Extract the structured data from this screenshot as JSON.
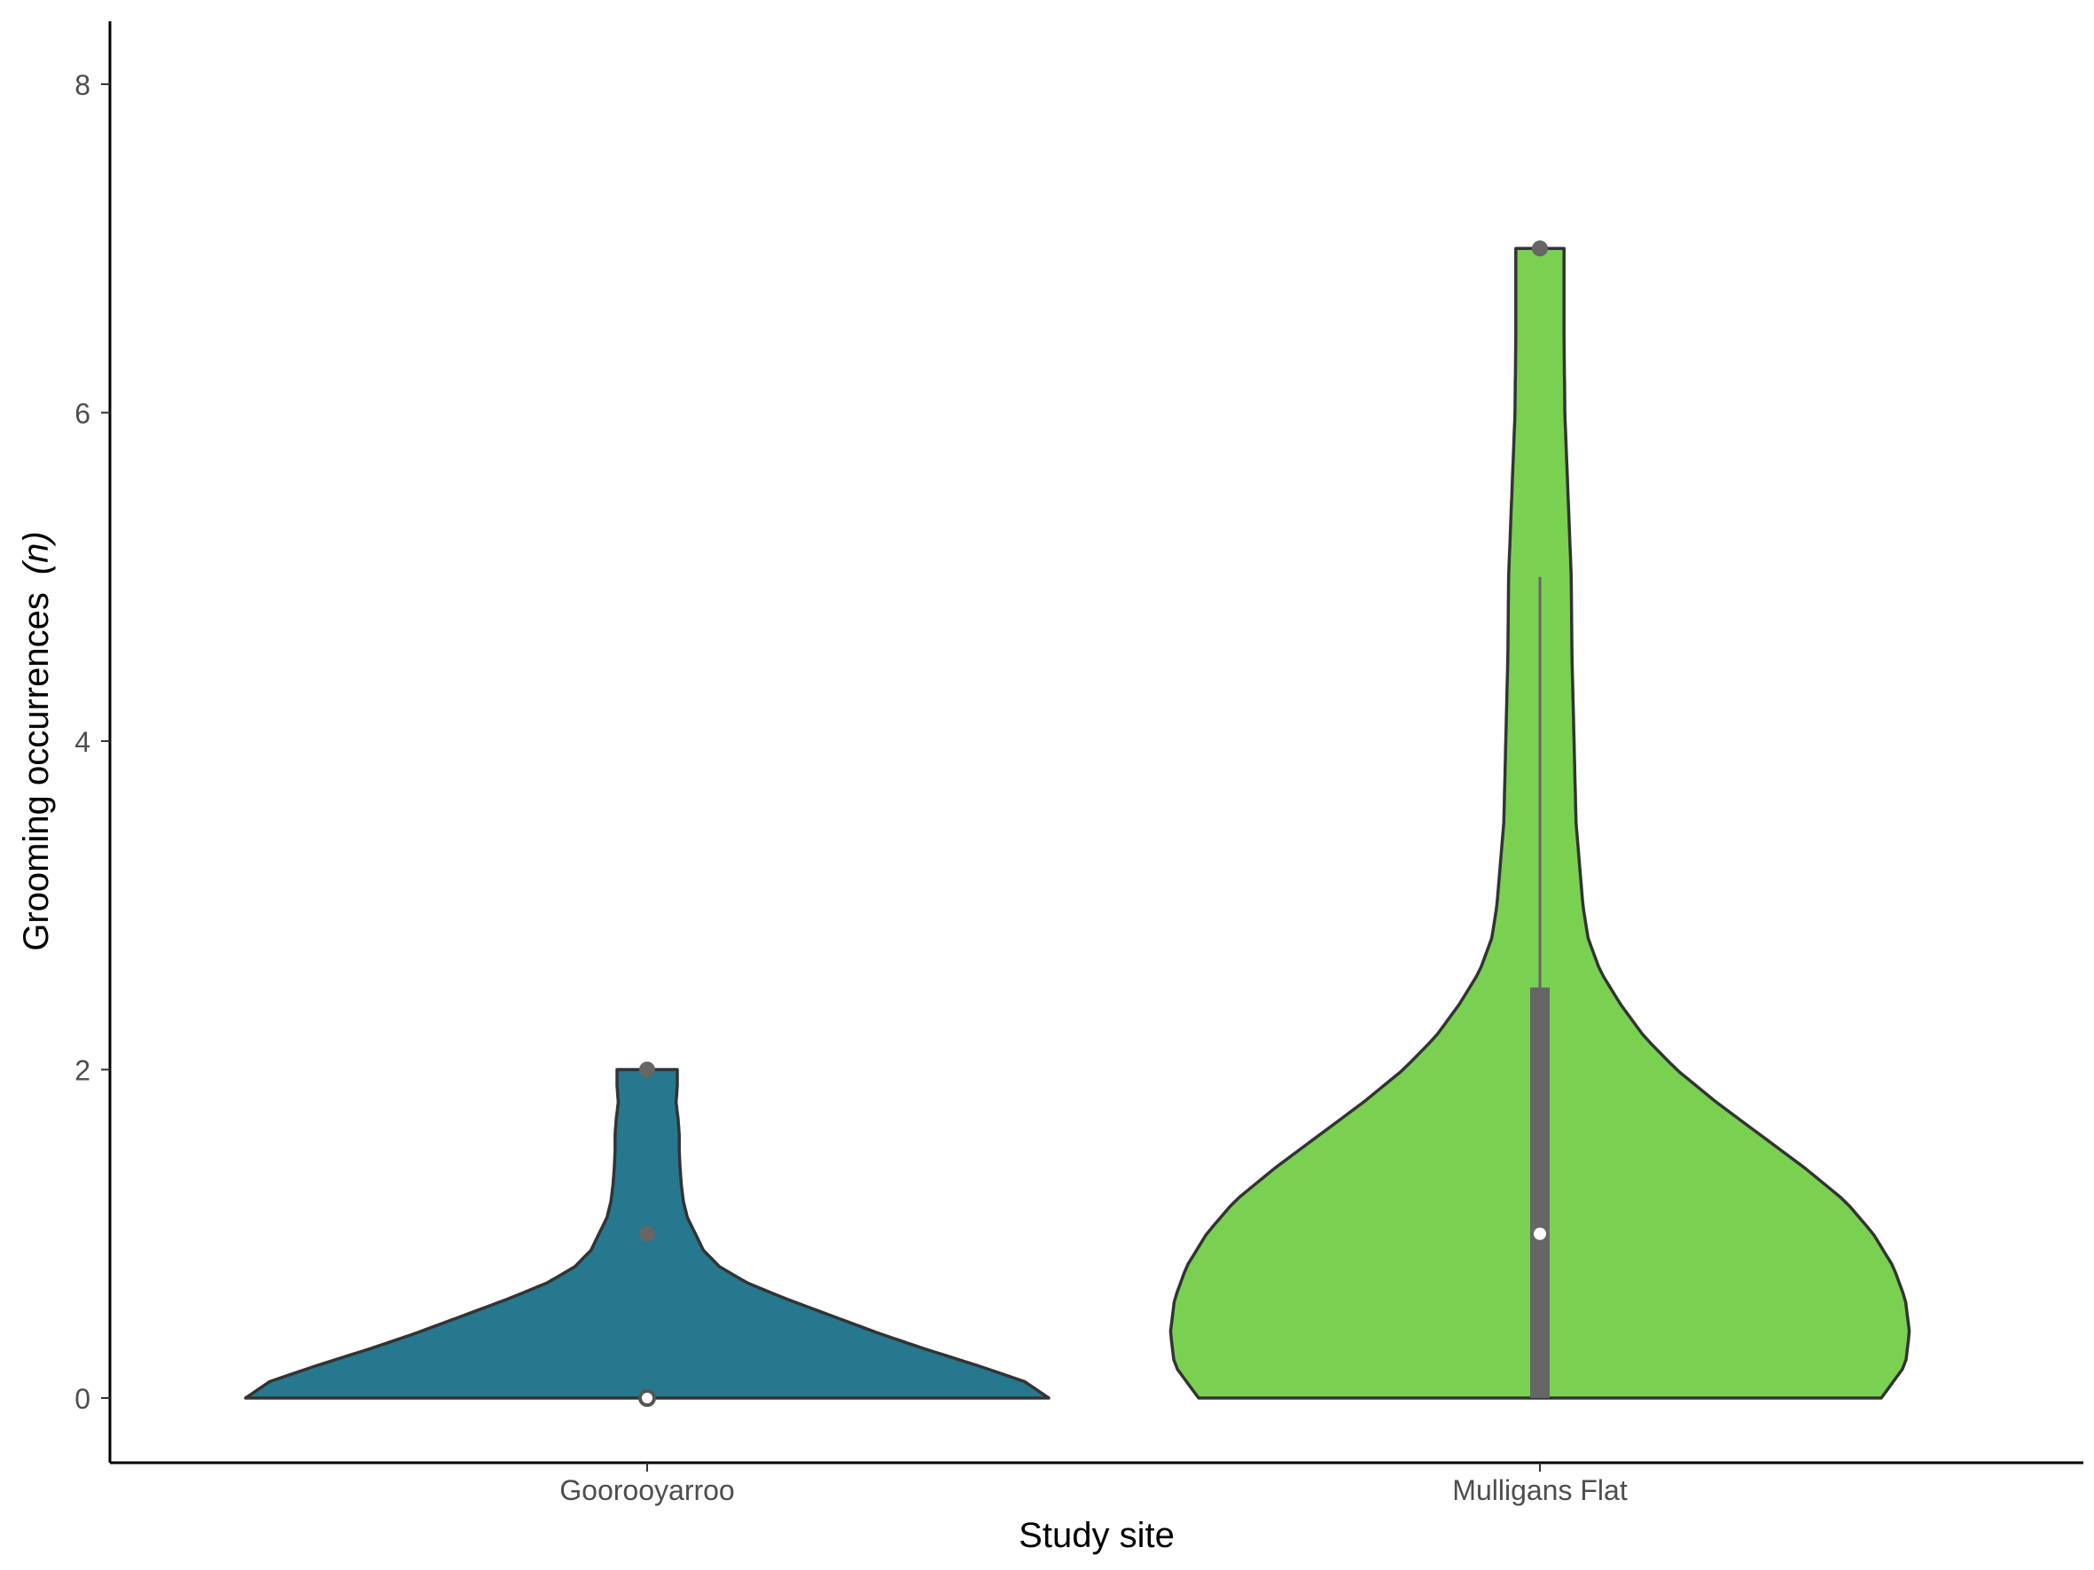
{
  "chart_data": {
    "type": "violin",
    "xlabel": "Study site",
    "ylabel": "Grooming occurrences",
    "ylabel_italic": "(n)",
    "ylim": [
      -0.38,
      8.38
    ],
    "yticks": [
      0,
      2,
      4,
      6,
      8
    ],
    "categories": [
      "Goorooyarroo",
      "Mulligans Flat"
    ],
    "grid": false,
    "legend": "none",
    "series": [
      {
        "category": "Goorooyarroo",
        "color": "#26788E",
        "violin_range": [
          0,
          2
        ],
        "density": [
          [
            0.0,
            1.0
          ],
          [
            0.1,
            0.94
          ],
          [
            0.2,
            0.82
          ],
          [
            0.3,
            0.69
          ],
          [
            0.4,
            0.57
          ],
          [
            0.5,
            0.46
          ],
          [
            0.6,
            0.35
          ],
          [
            0.7,
            0.25
          ],
          [
            0.8,
            0.18
          ],
          [
            0.9,
            0.14
          ],
          [
            1.0,
            0.12
          ],
          [
            1.1,
            0.1
          ],
          [
            1.2,
            0.09
          ],
          [
            1.3,
            0.085
          ],
          [
            1.4,
            0.082
          ],
          [
            1.5,
            0.08
          ],
          [
            1.6,
            0.08
          ],
          [
            1.7,
            0.077
          ],
          [
            1.8,
            0.072
          ],
          [
            1.9,
            0.075
          ],
          [
            2.0,
            0.075
          ]
        ],
        "box": {
          "q1": 0,
          "median": 0,
          "q3": 0,
          "whisker_low": 0,
          "whisker_high": 0
        },
        "outliers": [
          1,
          2
        ]
      },
      {
        "category": "Mulligans Flat",
        "color": "#7AD151",
        "violin_range": [
          0,
          7
        ],
        "density": [
          [
            0.0,
            0.85
          ],
          [
            0.2,
            0.91
          ],
          [
            0.4,
            0.92
          ],
          [
            0.6,
            0.91
          ],
          [
            0.8,
            0.88
          ],
          [
            1.0,
            0.83
          ],
          [
            1.2,
            0.76
          ],
          [
            1.4,
            0.66
          ],
          [
            1.6,
            0.55
          ],
          [
            1.8,
            0.44
          ],
          [
            2.0,
            0.34
          ],
          [
            2.2,
            0.26
          ],
          [
            2.4,
            0.2
          ],
          [
            2.6,
            0.15
          ],
          [
            2.8,
            0.12
          ],
          [
            3.0,
            0.107
          ],
          [
            3.5,
            0.09
          ],
          [
            4.0,
            0.085
          ],
          [
            4.5,
            0.08
          ],
          [
            5.0,
            0.078
          ],
          [
            5.5,
            0.07
          ],
          [
            6.0,
            0.062
          ],
          [
            6.5,
            0.06
          ],
          [
            7.0,
            0.06
          ]
        ],
        "box": {
          "q1": 0,
          "median": 1,
          "q3": 2.5,
          "whisker_low": 0,
          "whisker_high": 5
        },
        "outliers": [
          7
        ]
      }
    ]
  }
}
